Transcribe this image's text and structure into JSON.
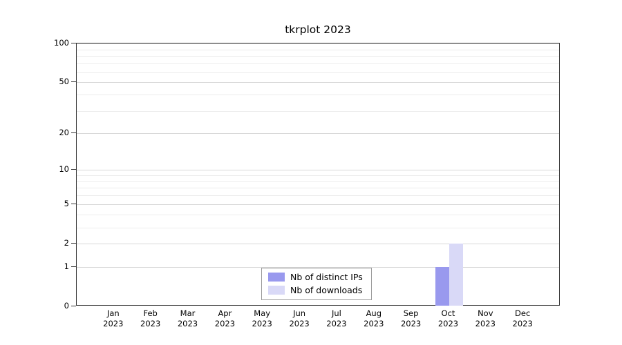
{
  "title": "tkrplot 2023",
  "chart_data": {
    "type": "bar",
    "title": "tkrplot 2023",
    "categories": [
      "Jan 2023",
      "Feb 2023",
      "Mar 2023",
      "Apr 2023",
      "May 2023",
      "Jun 2023",
      "Jul 2023",
      "Aug 2023",
      "Sep 2023",
      "Oct 2023",
      "Nov 2023",
      "Dec 2023"
    ],
    "series": [
      {
        "name": "Nb of distinct IPs",
        "color": "#9999ee",
        "values": [
          0,
          0,
          0,
          0,
          0,
          0,
          0,
          0,
          0,
          1,
          0,
          0
        ]
      },
      {
        "name": "Nb of downloads",
        "color": "#d9d9f7",
        "values": [
          0,
          0,
          0,
          0,
          0,
          0,
          0,
          0,
          0,
          2,
          0,
          0
        ]
      }
    ],
    "ylabel": "",
    "xlabel": "",
    "yticks": [
      0,
      1,
      2,
      5,
      10,
      20,
      50,
      100
    ],
    "minor_gridlines": [
      3,
      4,
      6,
      7,
      8,
      9,
      30,
      40,
      60,
      70,
      80,
      90
    ],
    "scale": "log10(v+1)",
    "ylim_top": 100,
    "grid": "horizontal",
    "legend_position": "bottom-center",
    "axis_color": "#333333"
  }
}
